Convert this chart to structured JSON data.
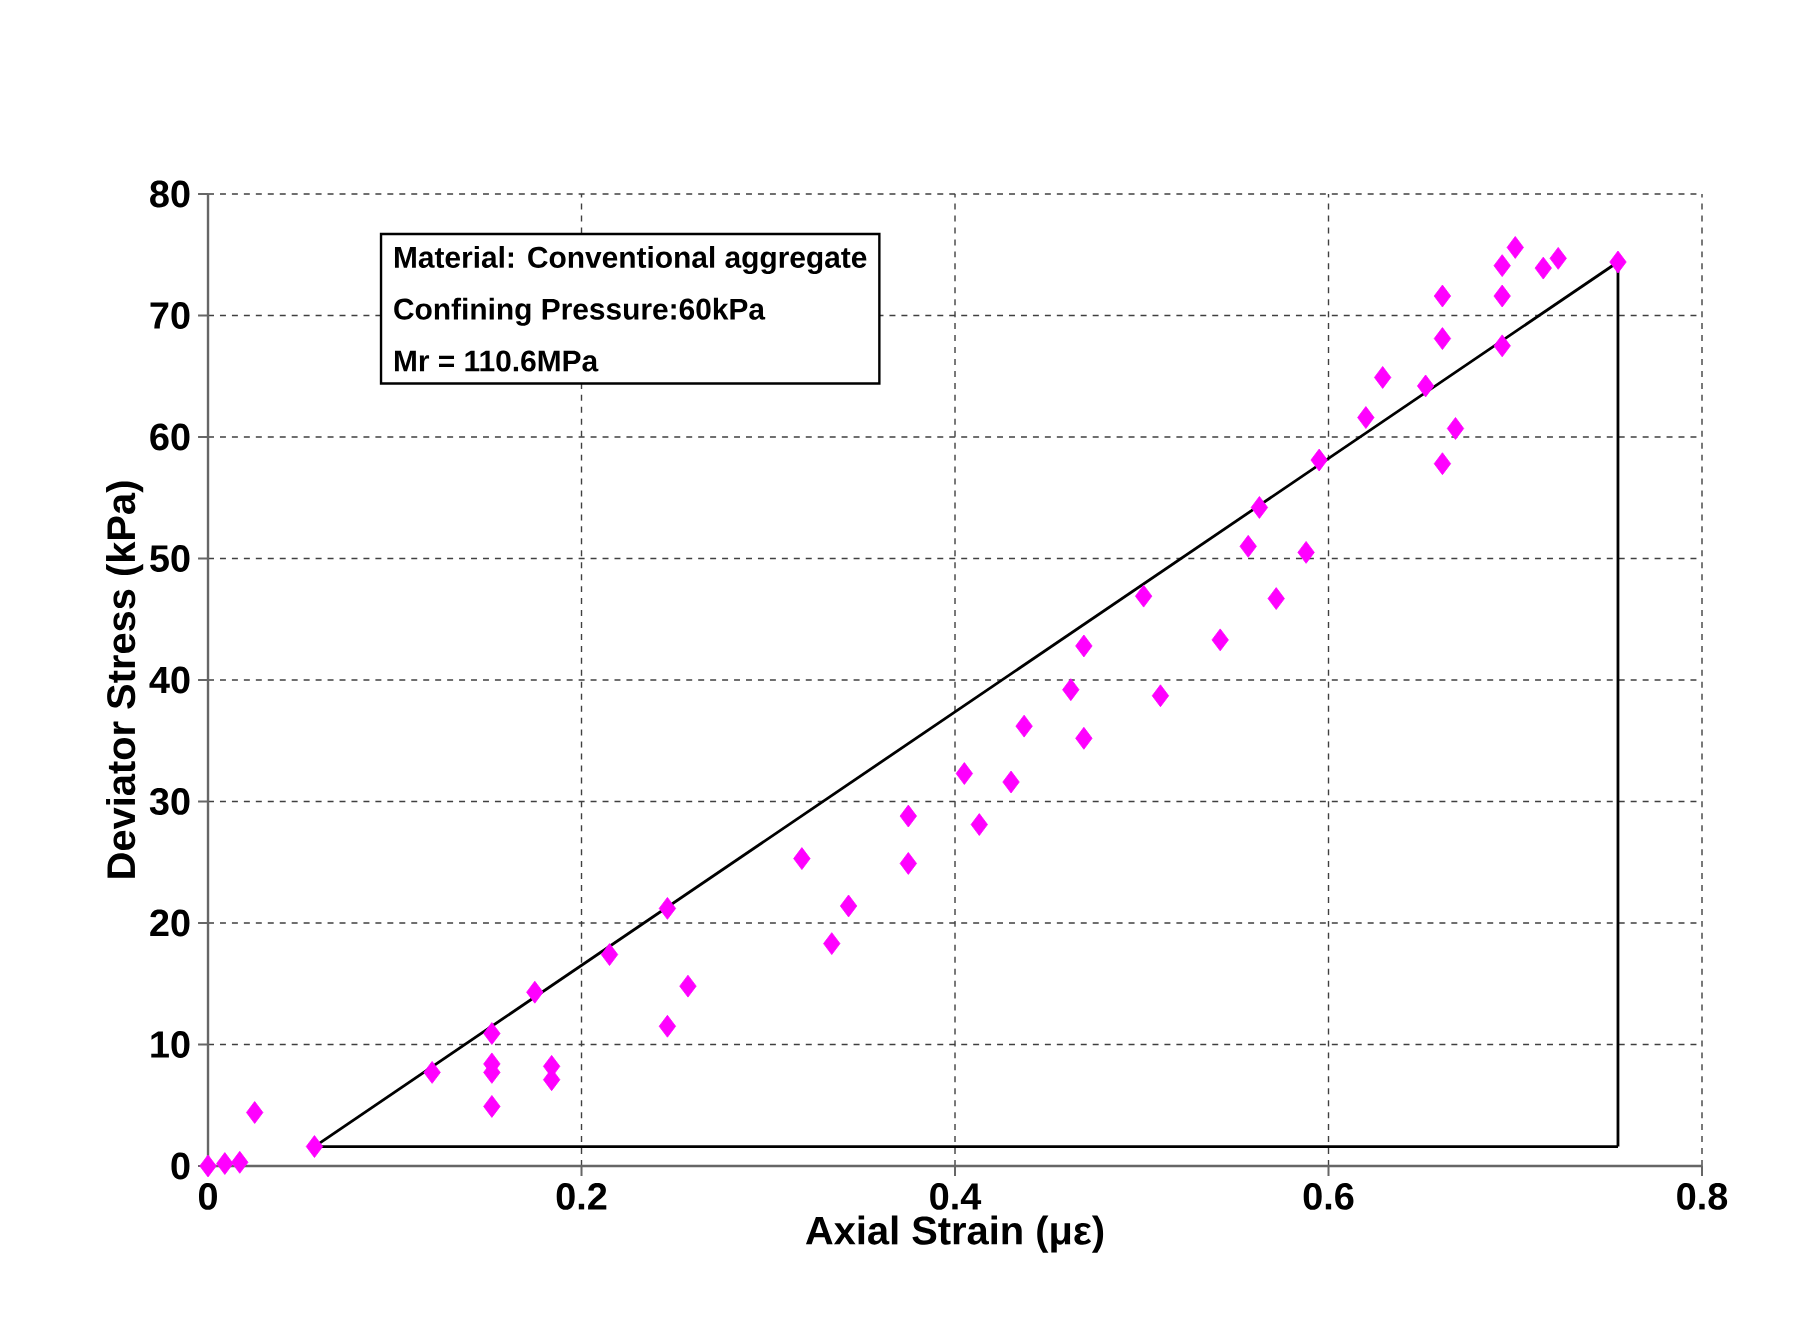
{
  "chart_data": {
    "type": "scatter",
    "xlabel": "Axial Strain (με)",
    "ylabel": "Deviator Stress (kPa)",
    "annotations": [
      "Material: Conventional aggregate",
      "Confining Pressure:60kPa",
      "Mr = 110.6MPa"
    ],
    "xlim": [
      0,
      0.8
    ],
    "ylim": [
      0,
      80
    ],
    "xticks": [
      0,
      0.2,
      0.4,
      0.6,
      0.8
    ],
    "yticks": [
      0,
      10,
      20,
      30,
      40,
      50,
      60,
      70,
      80
    ],
    "grid": true,
    "marker": "diamond",
    "series": [
      {
        "color": "#ff00ff",
        "x": [
          0,
          0.009,
          0.017,
          0.025,
          0.057,
          0.12,
          0.152,
          0.152,
          0.152,
          0.152,
          0.175,
          0.184,
          0.184,
          0.215,
          0.246,
          0.246,
          0.257,
          0.318,
          0.334,
          0.343,
          0.375,
          0.375,
          0.405,
          0.413,
          0.43,
          0.437,
          0.462,
          0.469,
          0.469,
          0.501,
          0.51,
          0.542,
          0.557,
          0.563,
          0.572,
          0.588,
          0.595,
          0.62,
          0.629,
          0.652,
          0.661,
          0.668,
          0.661,
          0.661,
          0.693,
          0.693,
          0.693,
          0.7,
          0.715,
          0.723,
          0.755
        ],
        "values": [
          0,
          0.2,
          0.3,
          4.4,
          1.6,
          7.7,
          10.9,
          8.4,
          7.7,
          4.9,
          14.3,
          8.2,
          7.1,
          17.4,
          21.2,
          11.5,
          14.8,
          25.3,
          18.3,
          21.4,
          28.8,
          24.9,
          32.3,
          28.1,
          31.6,
          36.2,
          39.2,
          42.8,
          35.2,
          46.9,
          38.7,
          43.3,
          51.0,
          54.2,
          46.7,
          50.5,
          58.1,
          61.6,
          64.9,
          64.2,
          57.8,
          60.7,
          68.1,
          71.6,
          67.5,
          71.6,
          74.1,
          75.6,
          73.9,
          74.7,
          74.4
        ]
      },
      {
        "type": "line",
        "color": "#000000",
        "marker": "none",
        "line_style": "solid",
        "x": [
          0.057,
          0.755
        ],
        "values": [
          1.6,
          74.4
        ]
      },
      {
        "type": "line",
        "color": "#000000",
        "marker": "none",
        "line_style": "solid",
        "x": [
          0.057,
          0.755
        ],
        "values": [
          1.6,
          1.6
        ]
      },
      {
        "type": "line",
        "color": "#000000",
        "marker": "none",
        "line_style": "solid",
        "x": [
          0.755,
          0.755
        ],
        "values": [
          1.6,
          74.4
        ]
      }
    ]
  }
}
